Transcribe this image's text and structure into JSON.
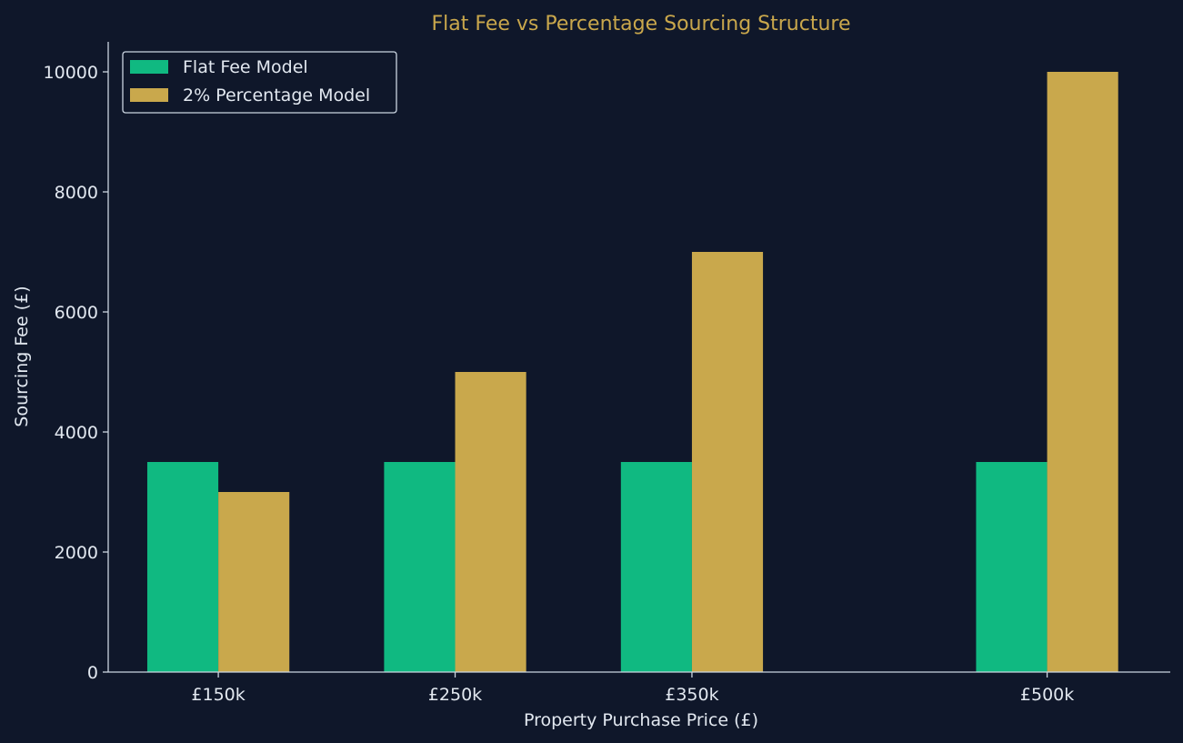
{
  "colors": {
    "background": "#0f172a",
    "text": "#e2e8f0",
    "title": "#c9a74c",
    "flat_fee": "#10b981",
    "percentage": "#c9a84c",
    "axis": "#cbd5e1"
  },
  "chart_data": {
    "type": "bar",
    "title": "Flat Fee vs Percentage Sourcing Structure",
    "xlabel": "Property Purchase Price (£)",
    "ylabel": "Sourcing Fee (£)",
    "x": [
      150,
      250,
      350,
      500
    ],
    "categories": [
      "£150k",
      "£250k",
      "£350k",
      "£500k"
    ],
    "ylim": [
      0,
      10500
    ],
    "xlim": [
      103.5,
      552
    ],
    "yticks": [
      0,
      2000,
      4000,
      6000,
      8000,
      10000
    ],
    "ytick_labels": [
      "0",
      "2000",
      "4000",
      "6000",
      "8000",
      "10000"
    ],
    "bar_width": 30,
    "series": [
      {
        "name": "Flat Fee Model",
        "values": [
          3500,
          3500,
          3500,
          3500
        ],
        "color": "#10b981"
      },
      {
        "name": "2% Percentage Model",
        "values": [
          3000,
          5000,
          7000,
          10000
        ],
        "color": "#c9a84c"
      }
    ],
    "legend_position": "top-left",
    "grid": false
  }
}
